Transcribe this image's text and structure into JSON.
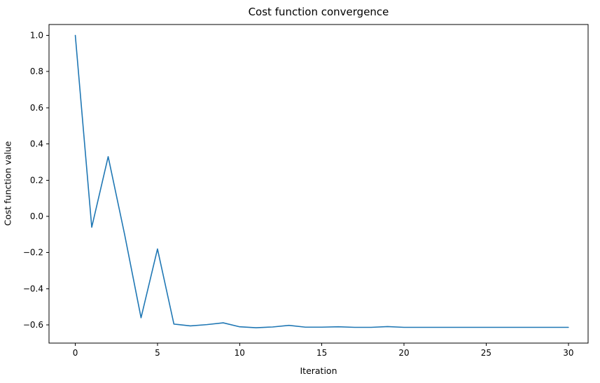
{
  "chart_data": {
    "type": "line",
    "title": "Cost function convergence",
    "xlabel": "Iteration",
    "ylabel": "Cost function value",
    "grid": false,
    "legend": "none",
    "line_color": "#1f77b4",
    "axes_color": "#000000",
    "xlim": [
      -1.6,
      31.2
    ],
    "ylim": [
      -0.7,
      1.06
    ],
    "xticks": [
      0,
      5,
      10,
      15,
      20,
      25,
      30
    ],
    "xtick_labels": [
      "0",
      "5",
      "10",
      "15",
      "20",
      "25",
      "30"
    ],
    "yticks": [
      -0.6,
      -0.4,
      -0.2,
      0.0,
      0.2,
      0.4,
      0.6,
      0.8,
      1.0
    ],
    "ytick_labels": [
      "−0.6",
      "−0.4",
      "−0.2",
      "0.0",
      "0.2",
      "0.4",
      "0.6",
      "0.8",
      "1.0"
    ],
    "x": [
      0,
      1,
      2,
      3,
      4,
      5,
      6,
      7,
      8,
      9,
      10,
      11,
      12,
      13,
      14,
      15,
      16,
      17,
      18,
      19,
      20,
      21,
      22,
      23,
      24,
      25,
      26,
      27,
      28,
      29,
      30
    ],
    "y": [
      1.0,
      -0.06,
      0.33,
      -0.1,
      -0.56,
      -0.18,
      -0.595,
      -0.605,
      -0.598,
      -0.588,
      -0.61,
      -0.615,
      -0.611,
      -0.602,
      -0.612,
      -0.612,
      -0.61,
      -0.613,
      -0.613,
      -0.609,
      -0.613,
      -0.613,
      -0.613,
      -0.613,
      -0.613,
      -0.613,
      -0.613,
      -0.613,
      -0.613,
      -0.613,
      -0.613
    ]
  },
  "layout_note": ""
}
